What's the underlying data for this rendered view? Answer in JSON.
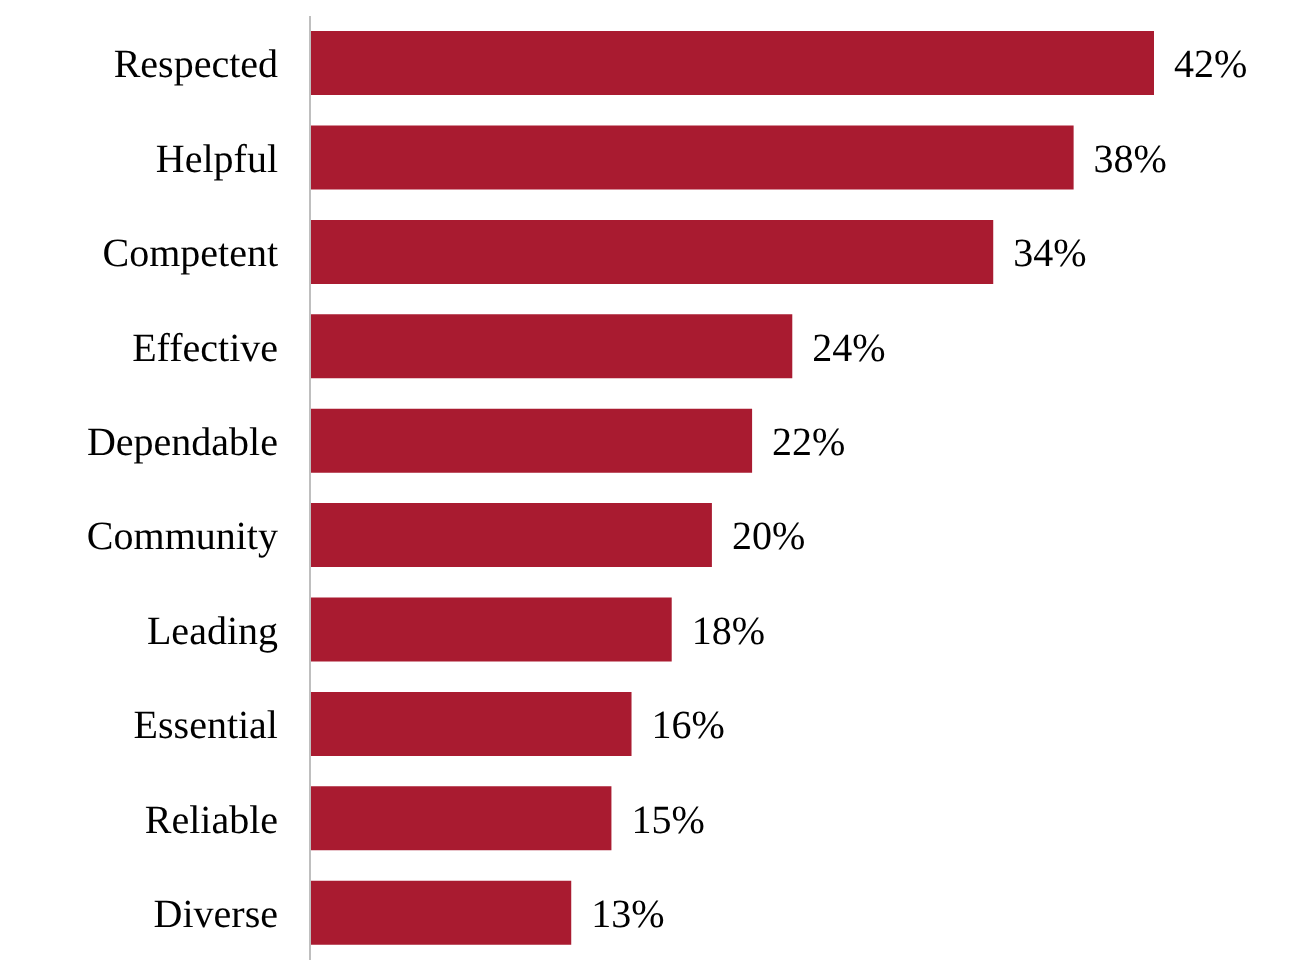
{
  "chart_data": {
    "type": "bar",
    "orientation": "horizontal",
    "categories": [
      "Respected",
      "Helpful",
      "Competent",
      "Effective",
      "Dependable",
      "Community",
      "Leading",
      "Essential",
      "Reliable",
      "Diverse"
    ],
    "values": [
      42,
      38,
      34,
      24,
      22,
      20,
      18,
      16,
      15,
      13
    ],
    "value_labels": [
      "42%",
      "38%",
      "34%",
      "24%",
      "22%",
      "20%",
      "18%",
      "16%",
      "15%",
      "13%"
    ],
    "color": "#a91b30"
  }
}
